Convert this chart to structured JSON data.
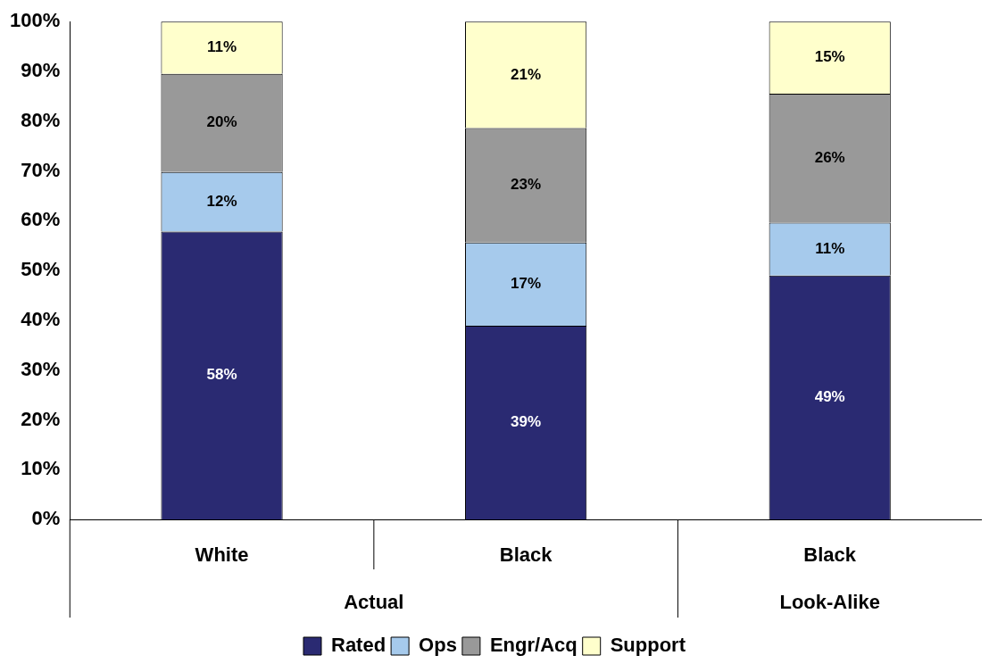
{
  "chart_data": {
    "type": "bar",
    "stacked": true,
    "categories": [
      "White",
      "Black",
      "Black"
    ],
    "series": [
      {
        "name": "Rated",
        "color": "#2a2a72",
        "values": [
          57.8,
          38.9,
          49.0
        ],
        "value_labels": [
          "58%",
          "39%",
          "49%"
        ]
      },
      {
        "name": "Ops",
        "color": "#a6caec",
        "values": [
          12.0,
          16.7,
          10.6
        ],
        "value_labels": [
          "12%",
          "17%",
          "11%"
        ]
      },
      {
        "name": "Engr/Acq",
        "color": "#999999",
        "values": [
          19.7,
          23.0,
          25.9
        ],
        "value_labels": [
          "20%",
          "23%",
          "26%"
        ]
      },
      {
        "name": "Support",
        "color": "#ffffcc",
        "values": [
          10.5,
          21.4,
          14.5
        ],
        "value_labels": [
          "11%",
          "21%",
          "15%"
        ]
      }
    ],
    "annotations": [
      "Actual",
      "Look-Alike"
    ],
    "ylim": [
      0,
      100
    ],
    "yticks": [
      {
        "value": 0,
        "label": "0%"
      },
      {
        "value": 10,
        "label": "10%"
      },
      {
        "value": 20,
        "label": "20%"
      },
      {
        "value": 30,
        "label": "30%"
      },
      {
        "value": 40,
        "label": "40%"
      },
      {
        "value": 50,
        "label": "50%"
      },
      {
        "value": 60,
        "label": "60%"
      },
      {
        "value": 70,
        "label": "70%"
      },
      {
        "value": 80,
        "label": "80%"
      },
      {
        "value": 90,
        "label": "90%"
      },
      {
        "value": 100,
        "label": "100%"
      }
    ],
    "grid": false,
    "legend": "bottom"
  }
}
